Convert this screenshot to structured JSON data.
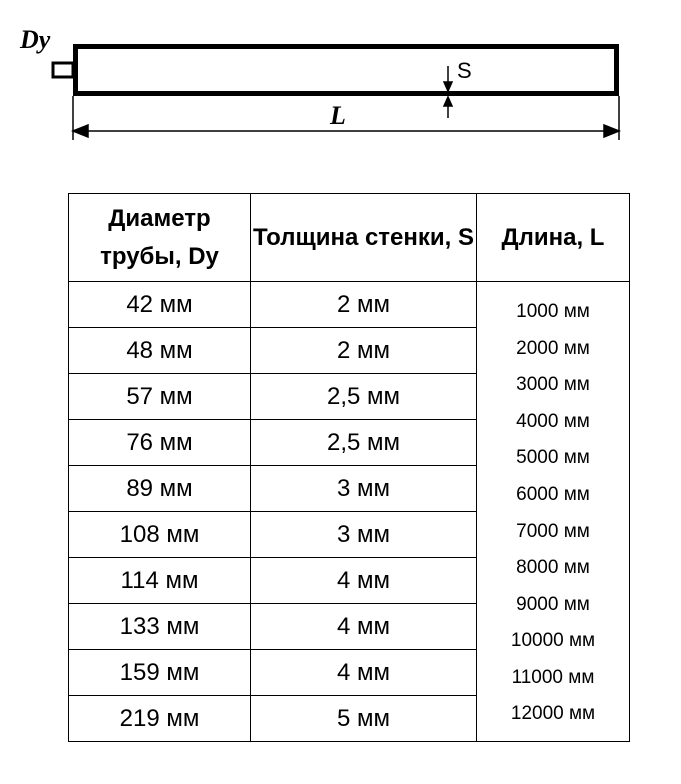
{
  "drawing": {
    "dy_label": "Dy",
    "s_label": "S",
    "l_label": "L"
  },
  "table": {
    "headers": [
      "Диаметр трубы, Dy",
      "Толщина стенки, S",
      "Длина, L"
    ],
    "rows": [
      {
        "diameter": "42 мм",
        "wall": "2 мм"
      },
      {
        "diameter": "48 мм",
        "wall": "2 мм"
      },
      {
        "diameter": "57 мм",
        "wall": "2,5 мм"
      },
      {
        "diameter": "76 мм",
        "wall": "2,5 мм"
      },
      {
        "diameter": "89 мм",
        "wall": "3 мм"
      },
      {
        "diameter": "108 мм",
        "wall": "3 мм"
      },
      {
        "diameter": "114 мм",
        "wall": "4 мм"
      },
      {
        "diameter": "133 мм",
        "wall": "4 мм"
      },
      {
        "diameter": "159 мм",
        "wall": "4 мм"
      },
      {
        "diameter": "219 мм",
        "wall": "5 мм"
      }
    ],
    "lengths": [
      "1000 мм",
      "2000 мм",
      "3000 мм",
      "4000 мм",
      "5000 мм",
      "6000 мм",
      "7000 мм",
      "8000 мм",
      "9000 мм",
      "10000 мм",
      "11000 мм",
      "12000 мм"
    ]
  }
}
